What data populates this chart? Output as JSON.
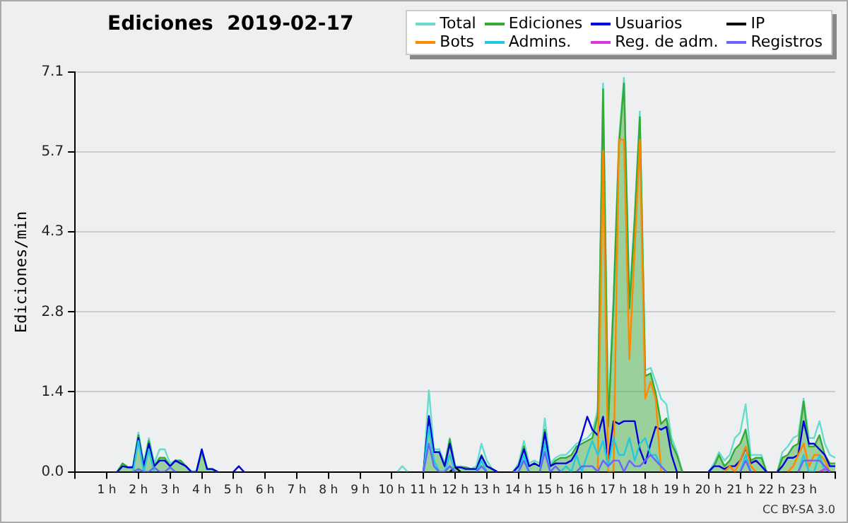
{
  "chart_data": {
    "type": "line",
    "title": "Ediciones  2019-02-17",
    "ylabel": "Ediciones/min",
    "annotations": [
      "CC BY-SA 3.0"
    ],
    "x": [
      1.33,
      1.5,
      1.67,
      1.83,
      2,
      2.17,
      2.33,
      2.5,
      2.67,
      2.83,
      3,
      3.17,
      3.33,
      3.5,
      3.67,
      3.83,
      4,
      4.17,
      4.33,
      4.5,
      4.67,
      4.83,
      5,
      5.17,
      5.33,
      5.5,
      5.67,
      5.83,
      6,
      6.17,
      6.33,
      6.5,
      6.67,
      6.83,
      7,
      7.17,
      7.33,
      7.5,
      7.67,
      7.83,
      8,
      8.17,
      8.33,
      8.5,
      8.67,
      8.83,
      9,
      9.17,
      9.33,
      9.5,
      9.67,
      9.83,
      10,
      10.17,
      10.33,
      10.5,
      10.67,
      10.83,
      11,
      11.17,
      11.33,
      11.5,
      11.67,
      11.83,
      12,
      12.17,
      12.33,
      12.5,
      12.67,
      12.83,
      13,
      13.17,
      13.33,
      13.5,
      13.67,
      13.83,
      14,
      14.17,
      14.33,
      14.5,
      14.67,
      14.83,
      15,
      15.17,
      15.33,
      15.5,
      15.67,
      15.83,
      16,
      16.17,
      16.33,
      16.5,
      16.67,
      16.83,
      17,
      17.17,
      17.33,
      17.5,
      17.67,
      17.83,
      18,
      18.17,
      18.33,
      18.5,
      18.67,
      18.83,
      19,
      19.17,
      19.33,
      19.5,
      19.67,
      19.83,
      20,
      20.17,
      20.33,
      20.5,
      20.67,
      20.83,
      21,
      21.17,
      21.33,
      21.5,
      21.67,
      21.83,
      22,
      22.17,
      22.33,
      22.5,
      22.67,
      22.83,
      23,
      23.17,
      23.33,
      23.5,
      23.67,
      23.83,
      24
    ],
    "xlim": [
      0,
      24
    ],
    "xticks": [
      {
        "value": 0,
        "label": null
      },
      {
        "value": 1,
        "label": "1 h"
      },
      {
        "value": 2,
        "label": "2 h"
      },
      {
        "value": 3,
        "label": "3 h"
      },
      {
        "value": 4,
        "label": "4 h"
      },
      {
        "value": 5,
        "label": "5 h"
      },
      {
        "value": 6,
        "label": "6 h"
      },
      {
        "value": 7,
        "label": "7 h"
      },
      {
        "value": 8,
        "label": "8 h"
      },
      {
        "value": 9,
        "label": "9 h"
      },
      {
        "value": 10,
        "label": "10 h"
      },
      {
        "value": 11,
        "label": "11 h"
      },
      {
        "value": 12,
        "label": "12 h"
      },
      {
        "value": 13,
        "label": "13 h"
      },
      {
        "value": 14,
        "label": "14 h"
      },
      {
        "value": 15,
        "label": "15 h"
      },
      {
        "value": 16,
        "label": "16 h"
      },
      {
        "value": 17,
        "label": "17 h"
      },
      {
        "value": 18,
        "label": "18 h"
      },
      {
        "value": 19,
        "label": "19 h"
      },
      {
        "value": 20,
        "label": "20 h"
      },
      {
        "value": 21,
        "label": "21 h"
      },
      {
        "value": 22,
        "label": "22 h"
      },
      {
        "value": 23,
        "label": "23 h"
      },
      {
        "value": 24,
        "label": null
      }
    ],
    "ylim": [
      0,
      7.1
    ],
    "yticks": [
      {
        "value": 0,
        "label": "0.0"
      },
      {
        "value": 1.42,
        "label": "1.4"
      },
      {
        "value": 2.84,
        "label": "2.8"
      },
      {
        "value": 4.26,
        "label": "4.3"
      },
      {
        "value": 5.68,
        "label": "5.7"
      },
      7.1
    ],
    "grid": "y",
    "legend": "top right",
    "marker": "none",
    "line_style": "solid",
    "series": [
      {
        "name": "Total",
        "color": "#66ddcc",
        "values": [
          0,
          0.15,
          0.08,
          0.1,
          0.7,
          0.15,
          0.6,
          0.15,
          0.4,
          0.4,
          0.15,
          0.2,
          0.2,
          0.1,
          0,
          0,
          0.4,
          0.05,
          0.05,
          0,
          null,
          null,
          null,
          null,
          null,
          null,
          null,
          null,
          null,
          null,
          null,
          null,
          null,
          null,
          null,
          null,
          null,
          null,
          null,
          null,
          null,
          null,
          null,
          null,
          null,
          null,
          null,
          null,
          null,
          null,
          null,
          null,
          null,
          0,
          0.1,
          0,
          null,
          null,
          0,
          1.45,
          0.4,
          0.4,
          0.15,
          0.6,
          0.1,
          0.1,
          0.08,
          0.05,
          0.1,
          0.5,
          0.2,
          0.05,
          0,
          null,
          null,
          0,
          0.15,
          0.55,
          0.15,
          0.2,
          0.15,
          0.95,
          0.15,
          0.25,
          0.3,
          0.3,
          0.4,
          0.5,
          0.55,
          0.6,
          0.7,
          1.1,
          6.9,
          0.9,
          3.1,
          5.9,
          7.0,
          3.0,
          4.6,
          6.4,
          1.8,
          1.85,
          1.6,
          1.3,
          1.2,
          0.6,
          0.35,
          0,
          null,
          null,
          null,
          null,
          0,
          0.15,
          0.35,
          0.2,
          0.3,
          0.6,
          0.7,
          1.2,
          0.3,
          0.3,
          0.3,
          0,
          null,
          0,
          0.35,
          0.45,
          0.6,
          0.65,
          1.3,
          0.6,
          0.6,
          0.9,
          0.5,
          0.3,
          0.25
        ]
      },
      {
        "name": "Ediciones",
        "type": "area",
        "color": "#33aa33",
        "values": [
          0,
          0.15,
          0.08,
          0.08,
          0.65,
          0.1,
          0.55,
          0.1,
          0.25,
          0.25,
          0.1,
          0.2,
          0.2,
          0.1,
          0,
          0,
          0.35,
          0.05,
          0.05,
          0,
          null,
          null,
          null,
          null,
          null,
          null,
          null,
          null,
          null,
          null,
          null,
          null,
          null,
          null,
          null,
          null,
          null,
          null,
          null,
          null,
          null,
          null,
          null,
          null,
          null,
          null,
          null,
          null,
          null,
          null,
          null,
          null,
          null,
          null,
          null,
          null,
          null,
          null,
          0,
          0.95,
          0.35,
          0.35,
          0.1,
          0.58,
          0.08,
          0.08,
          0.08,
          0.05,
          0.05,
          0.3,
          0.1,
          0.05,
          0,
          null,
          null,
          0,
          0.1,
          0.45,
          0.1,
          0.15,
          0.1,
          0.75,
          0.1,
          0.2,
          0.25,
          0.25,
          0.3,
          0.45,
          0.5,
          0.55,
          0.6,
          1.0,
          6.8,
          0.8,
          3.0,
          5.8,
          6.9,
          2.9,
          4.5,
          6.3,
          1.7,
          1.75,
          1.4,
          0.85,
          0.95,
          0.5,
          0.3,
          0,
          null,
          null,
          null,
          null,
          0,
          0.1,
          0.3,
          0.1,
          0.2,
          0.4,
          0.5,
          0.75,
          0.2,
          0.25,
          0.25,
          0,
          null,
          0,
          0.25,
          0.3,
          0.45,
          0.5,
          1.25,
          0.45,
          0.45,
          0.65,
          0.3,
          0.15,
          0.15
        ]
      },
      {
        "name": "Usuarios",
        "color": "#0000dd",
        "values": [
          0,
          0.1,
          0.08,
          0.08,
          0.6,
          0.1,
          0.5,
          0.1,
          0.2,
          0.2,
          0.1,
          0.2,
          0.15,
          0.1,
          0,
          0,
          0.4,
          0.05,
          0.05,
          0,
          null,
          null,
          0,
          0.1,
          0,
          null,
          null,
          null,
          null,
          null,
          null,
          null,
          null,
          null,
          null,
          null,
          null,
          null,
          null,
          null,
          null,
          null,
          null,
          null,
          null,
          null,
          null,
          null,
          null,
          null,
          null,
          null,
          null,
          null,
          null,
          null,
          null,
          null,
          0,
          0.99,
          0.35,
          0.35,
          0.1,
          0.5,
          0.08,
          0.08,
          0.05,
          0.05,
          0.05,
          0.28,
          0.1,
          0.05,
          0,
          null,
          null,
          0,
          0.1,
          0.4,
          0.1,
          0.15,
          0.1,
          0.7,
          0.1,
          0.15,
          0.15,
          0.15,
          0.2,
          0.35,
          0.65,
          0.98,
          0.75,
          0.65,
          0.98,
          0.2,
          0.9,
          0.85,
          0.9,
          0.9,
          0.9,
          0.4,
          0.15,
          0.5,
          0.8,
          0.75,
          0.8,
          0.3,
          0,
          null,
          null,
          null,
          null,
          null,
          0,
          0.1,
          0.1,
          0.05,
          0.1,
          0.1,
          0.2,
          0.43,
          0.15,
          0.2,
          0.1,
          0,
          null,
          0,
          0.1,
          0.25,
          0.25,
          0.3,
          0.9,
          0.5,
          0.5,
          0.4,
          0.3,
          0.1,
          0.1
        ]
      },
      {
        "name": "IP",
        "color": "#000000",
        "values": [
          null,
          null,
          null,
          null,
          null,
          null,
          null,
          null,
          null,
          null,
          null,
          null,
          null,
          null,
          null,
          null,
          null,
          null,
          null,
          null,
          null,
          null,
          null,
          null,
          null,
          null,
          null,
          null,
          null,
          null,
          null,
          null,
          null,
          null,
          null,
          null,
          null,
          null,
          null,
          null,
          null,
          null,
          null,
          null,
          null,
          null,
          null,
          null,
          null,
          null,
          null,
          null,
          null,
          null,
          null,
          null,
          null,
          null,
          null,
          null,
          null,
          null,
          null,
          0,
          0.08,
          0,
          null,
          null,
          null,
          null,
          null,
          null,
          null,
          null,
          null,
          null,
          null,
          null,
          null,
          null,
          null,
          null,
          null,
          null,
          null,
          null,
          null,
          null,
          null,
          null,
          null,
          null,
          null,
          null,
          null,
          null,
          null,
          null,
          null,
          null,
          null,
          null,
          null,
          null,
          null,
          null,
          null,
          null,
          null,
          null,
          null,
          null,
          null,
          null,
          null,
          null,
          null,
          null,
          null,
          null,
          null,
          null,
          null,
          null,
          null,
          null,
          null,
          null,
          null,
          null,
          null,
          null,
          null,
          null,
          null,
          null,
          null
        ]
      },
      {
        "name": "Bots",
        "color": "#ff8800",
        "values": [
          null,
          null,
          null,
          null,
          null,
          null,
          null,
          null,
          null,
          null,
          null,
          null,
          null,
          null,
          null,
          null,
          null,
          null,
          null,
          null,
          null,
          null,
          null,
          null,
          null,
          null,
          null,
          null,
          null,
          null,
          null,
          null,
          null,
          null,
          null,
          null,
          null,
          null,
          null,
          null,
          null,
          null,
          null,
          null,
          null,
          null,
          null,
          null,
          null,
          null,
          null,
          null,
          null,
          null,
          null,
          null,
          null,
          null,
          null,
          null,
          null,
          null,
          null,
          null,
          null,
          null,
          null,
          null,
          null,
          null,
          null,
          null,
          null,
          null,
          null,
          null,
          null,
          null,
          null,
          null,
          null,
          null,
          null,
          null,
          null,
          null,
          null,
          null,
          null,
          null,
          null,
          0,
          5.7,
          0,
          0,
          5.9,
          5.9,
          2.0,
          4.0,
          5.9,
          1.3,
          1.6,
          1.3,
          0,
          null,
          null,
          null,
          null,
          null,
          null,
          null,
          null,
          null,
          null,
          null,
          0,
          0.1,
          0,
          0.2,
          0.45,
          0.1,
          0,
          null,
          null,
          null,
          null,
          null,
          0,
          0.1,
          0.3,
          0.5,
          0.1,
          0.3,
          0.3,
          0.2,
          0,
          null
        ]
      },
      {
        "name": "Admins.",
        "color": "#22c8e0",
        "values": [
          null,
          null,
          null,
          0,
          0.55,
          0,
          0.4,
          0,
          null,
          null,
          null,
          null,
          null,
          null,
          null,
          null,
          null,
          null,
          null,
          null,
          null,
          null,
          null,
          null,
          null,
          null,
          null,
          null,
          null,
          null,
          null,
          null,
          null,
          null,
          null,
          null,
          null,
          null,
          null,
          null,
          null,
          null,
          null,
          null,
          null,
          null,
          null,
          null,
          null,
          null,
          null,
          null,
          null,
          null,
          null,
          null,
          null,
          null,
          0,
          0.8,
          0.2,
          0,
          0,
          0.3,
          0,
          null,
          null,
          null,
          0,
          0.2,
          0,
          null,
          null,
          null,
          null,
          0,
          0,
          0.3,
          0,
          null,
          0,
          0.5,
          0,
          null,
          0,
          0.1,
          0,
          0.3,
          0,
          0.3,
          0.55,
          0.3,
          0.55,
          0.1,
          0.6,
          0.3,
          0.3,
          0.6,
          0.2,
          0.5,
          0.6,
          0.3,
          0.3,
          0.1,
          0,
          null,
          null,
          null,
          null,
          null,
          null,
          null,
          null,
          null,
          null,
          null,
          null,
          null,
          0,
          0.3,
          0,
          null,
          null,
          null,
          null,
          null,
          null,
          null,
          null,
          0,
          0.3,
          0,
          0,
          0.3,
          0,
          null,
          null
        ]
      },
      {
        "name": "Reg. de adm.",
        "color": "#dd33dd",
        "values": [
          null,
          null,
          null,
          null,
          null,
          null,
          null,
          null,
          null,
          null,
          null,
          null,
          null,
          null,
          null,
          null,
          null,
          null,
          null,
          null,
          null,
          null,
          null,
          null,
          null,
          null,
          null,
          null,
          null,
          null,
          null,
          null,
          null,
          null,
          null,
          null,
          null,
          null,
          null,
          null,
          null,
          null,
          null,
          null,
          null,
          null,
          null,
          null,
          null,
          null,
          null,
          null,
          null,
          null,
          null,
          null,
          null,
          null,
          null,
          null,
          null,
          null,
          null,
          null,
          null,
          null,
          null,
          null,
          null,
          null,
          null,
          null,
          null,
          null,
          null,
          null,
          null,
          null,
          null,
          null,
          null,
          null,
          null,
          null,
          null,
          null,
          null,
          null,
          null,
          null,
          null,
          null,
          null,
          null,
          null,
          null,
          null,
          null,
          null,
          null,
          null,
          null,
          null,
          null,
          null,
          null,
          null,
          null,
          null,
          null,
          null,
          null,
          null,
          null,
          null,
          null,
          null,
          null,
          null,
          null,
          null,
          null,
          null,
          null,
          null,
          null,
          null,
          null,
          null,
          null,
          null,
          null,
          null,
          0,
          0.05,
          0,
          null
        ]
      },
      {
        "name": "Registros",
        "color": "#6666ff",
        "values": [
          null,
          null,
          null,
          0,
          0.05,
          0,
          0,
          0.08,
          0,
          0,
          0.08,
          0,
          null,
          null,
          null,
          null,
          null,
          null,
          null,
          null,
          null,
          null,
          null,
          null,
          null,
          null,
          null,
          null,
          null,
          null,
          null,
          null,
          null,
          null,
          null,
          null,
          null,
          null,
          null,
          null,
          null,
          null,
          null,
          null,
          null,
          null,
          null,
          null,
          null,
          null,
          null,
          null,
          null,
          null,
          null,
          null,
          null,
          null,
          0,
          0.5,
          0.1,
          0,
          0,
          0.1,
          0,
          null,
          null,
          null,
          0,
          0.1,
          0,
          null,
          null,
          null,
          null,
          0,
          0,
          0.2,
          0,
          null,
          0,
          0.35,
          0,
          0.1,
          0,
          null,
          null,
          0,
          0.1,
          0.1,
          0.1,
          0,
          0.2,
          0.1,
          0.2,
          0.2,
          0,
          0.2,
          0.1,
          0.1,
          0.2,
          0.3,
          0.2,
          0.1,
          0,
          null,
          null,
          null,
          null,
          null,
          null,
          null,
          null,
          null,
          null,
          null,
          null,
          null,
          0,
          0.2,
          0,
          null,
          null,
          null,
          null,
          null,
          null,
          null,
          null,
          0,
          0.2,
          0.2,
          0.2,
          0.2,
          0.1,
          0,
          null
        ]
      }
    ]
  }
}
